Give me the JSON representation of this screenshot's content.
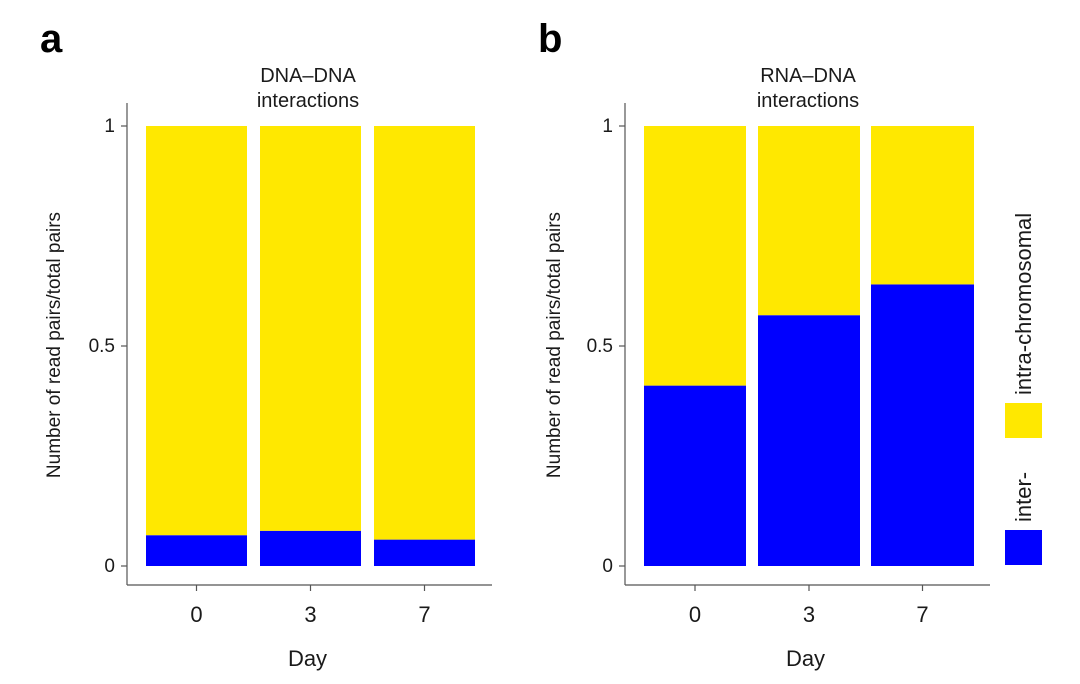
{
  "panels": {
    "a": {
      "letter": "a"
    },
    "b": {
      "letter": "b"
    }
  },
  "chart_data": [
    {
      "type": "bar",
      "stacked": true,
      "title": "DNA–DNA interactions",
      "title_lines": [
        "DNA–DNA",
        "interactions"
      ],
      "xlabel": "Day",
      "ylabel": "Number of read pairs/total pairs",
      "categories": [
        "0",
        "3",
        "7"
      ],
      "ylim": [
        0,
        1
      ],
      "yticks": [
        "0",
        "0.5",
        "1"
      ],
      "series": [
        {
          "name": "inter-",
          "values": [
            0.07,
            0.08,
            0.06
          ]
        },
        {
          "name": "intra-chromosomal",
          "values": [
            0.93,
            0.92,
            0.94
          ]
        }
      ]
    },
    {
      "type": "bar",
      "stacked": true,
      "title": "RNA–DNA interactions",
      "title_lines": [
        "RNA–DNA",
        "interactions"
      ],
      "xlabel": "Day",
      "ylabel": "Number of read pairs/total pairs",
      "categories": [
        "0",
        "3",
        "7"
      ],
      "ylim": [
        0,
        1
      ],
      "yticks": [
        "0",
        "0.5",
        "1"
      ],
      "series": [
        {
          "name": "inter-",
          "values": [
            0.41,
            0.57,
            0.64
          ]
        },
        {
          "name": "intra-chromosomal",
          "values": [
            0.59,
            0.43,
            0.36
          ]
        }
      ]
    }
  ],
  "legend": {
    "items": [
      {
        "label": "intra-chromosomal",
        "color": "#FFE800"
      },
      {
        "label": "inter-",
        "color": "#0000FF"
      }
    ]
  },
  "colors": {
    "inter": "#0000FF",
    "intra": "#FFE800"
  }
}
